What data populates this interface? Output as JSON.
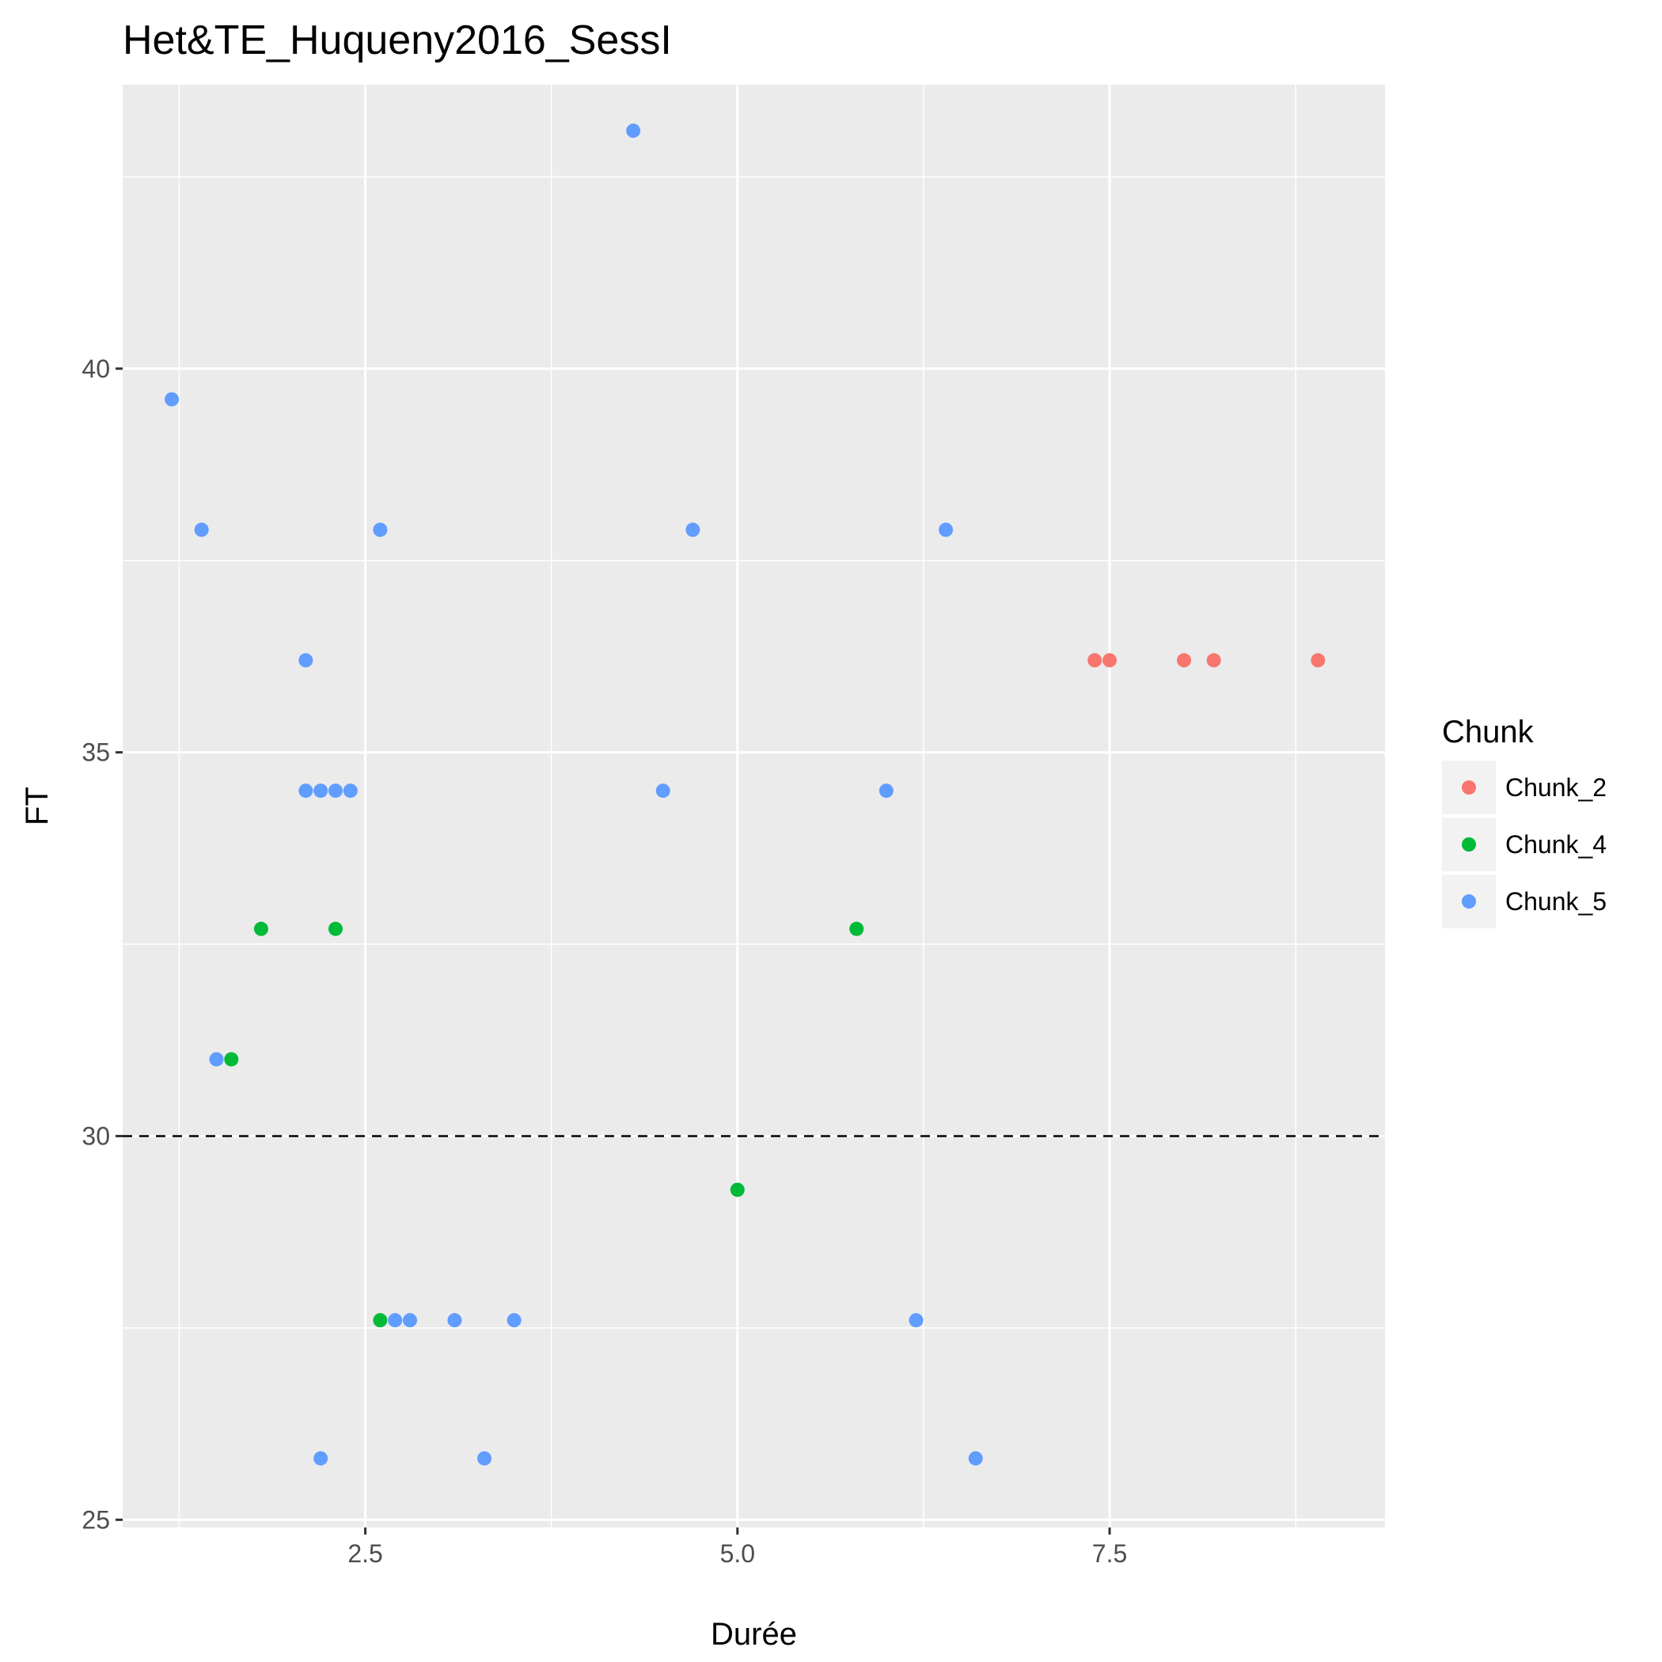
{
  "chart_data": {
    "type": "scatter",
    "title": "Het&TE_Huqueny2016_SessI",
    "xlabel": "Durée",
    "ylabel": "FT",
    "xlim": [
      0.87,
      9.35
    ],
    "ylim": [
      24.9,
      43.7
    ],
    "x_ticks": [
      2.5,
      5.0,
      7.5
    ],
    "x_tick_labels": [
      "2.5",
      "5.0",
      "7.5"
    ],
    "y_ticks": [
      25,
      30,
      35,
      40
    ],
    "y_tick_labels": [
      "25",
      "30",
      "35",
      "40"
    ],
    "grid": true,
    "reference_line": {
      "orientation": "horizontal",
      "y": 30,
      "style": "dashed"
    },
    "legend": {
      "title": "Chunk",
      "placement": "right"
    },
    "series": [
      {
        "name": "Chunk_2",
        "color": "#F8766D",
        "points": [
          [
            7.4,
            36.2
          ],
          [
            7.5,
            36.2
          ],
          [
            8.0,
            36.2
          ],
          [
            8.2,
            36.2
          ],
          [
            8.9,
            36.2
          ]
        ]
      },
      {
        "name": "Chunk_4",
        "color": "#00BA38",
        "points": [
          [
            1.8,
            32.7
          ],
          [
            2.3,
            32.7
          ],
          [
            5.8,
            32.7
          ],
          [
            1.6,
            31.0
          ],
          [
            5.0,
            29.3
          ],
          [
            2.6,
            27.6
          ]
        ]
      },
      {
        "name": "Chunk_5",
        "color": "#619CFF",
        "points": [
          [
            4.3,
            43.1
          ],
          [
            1.2,
            39.6
          ],
          [
            1.4,
            37.9
          ],
          [
            2.6,
            37.9
          ],
          [
            4.7,
            37.9
          ],
          [
            6.4,
            37.9
          ],
          [
            2.1,
            36.2
          ],
          [
            2.1,
            34.5
          ],
          [
            2.2,
            34.5
          ],
          [
            2.3,
            34.5
          ],
          [
            2.4,
            34.5
          ],
          [
            4.5,
            34.5
          ],
          [
            6.0,
            34.5
          ],
          [
            1.5,
            31.0
          ],
          [
            2.7,
            27.6
          ],
          [
            2.8,
            27.6
          ],
          [
            3.1,
            27.6
          ],
          [
            3.5,
            27.6
          ],
          [
            6.2,
            27.6
          ],
          [
            2.2,
            25.8
          ],
          [
            3.3,
            25.8
          ],
          [
            6.6,
            25.8
          ]
        ]
      }
    ]
  }
}
